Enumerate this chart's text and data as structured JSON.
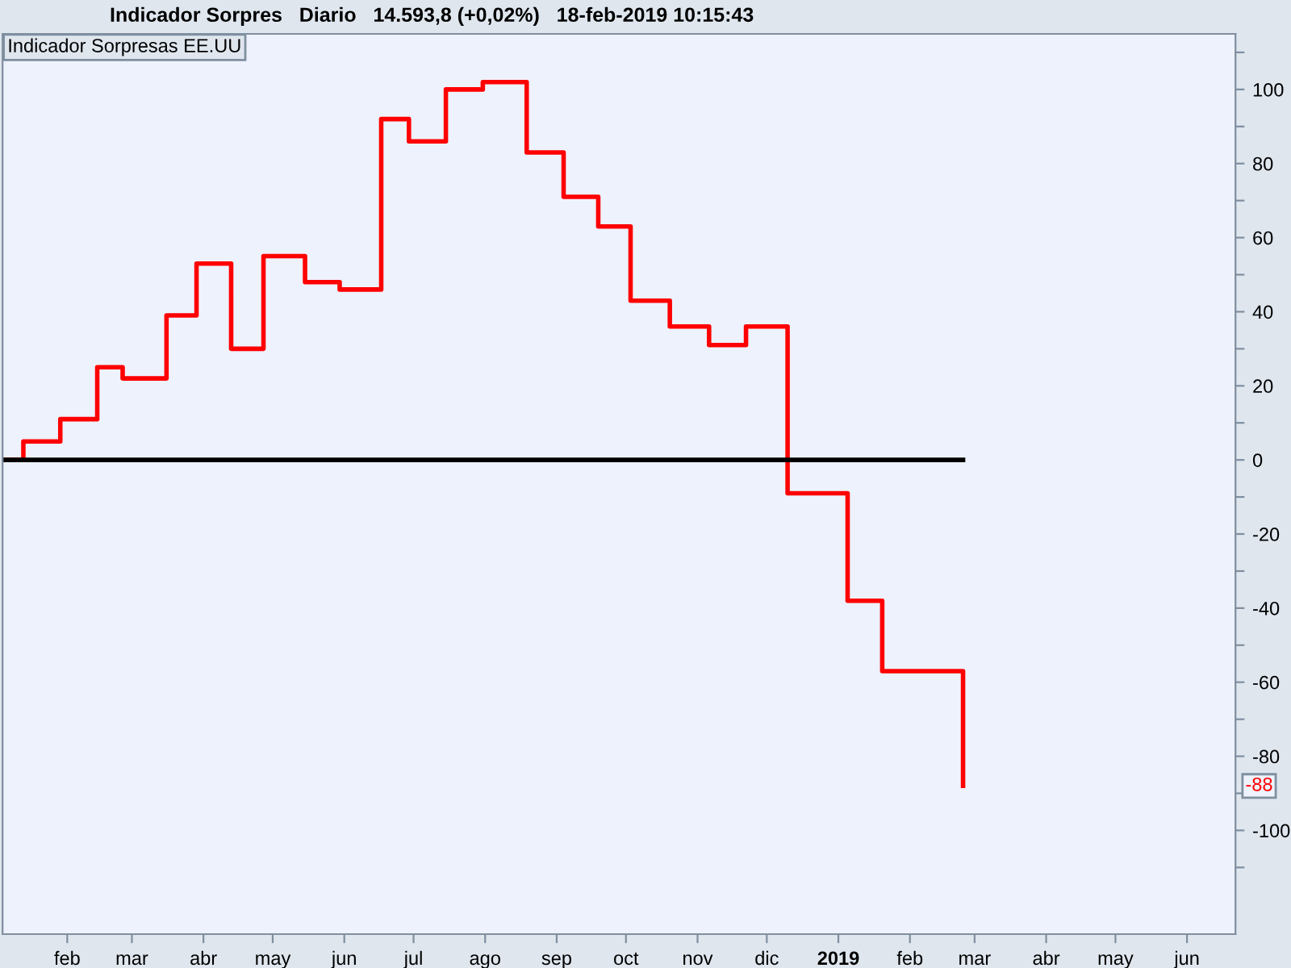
{
  "chart_data": {
    "type": "step",
    "title": "Indicador Sorpres   Diario   14.593,8 (+0,02%)   18-feb-2019 10:15:43",
    "subtitle": "Indicador Sorpresas EE.UU",
    "series": [
      {
        "color": "#ff0000",
        "x": [
          "2018-01-04",
          "2018-01-13",
          "2018-01-29",
          "2018-02-14",
          "2018-02-25",
          "2018-03-16",
          "2018-03-29",
          "2018-04-13",
          "2018-04-27",
          "2018-05-15",
          "2018-05-30",
          "2018-06-17",
          "2018-06-29",
          "2018-07-15",
          "2018-07-31",
          "2018-08-19",
          "2018-09-04",
          "2018-09-19",
          "2018-10-03",
          "2018-10-20",
          "2018-11-06",
          "2018-11-22",
          "2018-12-10",
          "2019-01-05",
          "2019-01-20",
          "2019-02-24"
        ],
        "values": [
          0,
          5,
          11,
          25,
          22,
          39,
          53,
          30,
          55,
          48,
          46,
          92,
          86,
          100,
          102,
          83,
          71,
          63,
          43,
          36,
          31,
          36,
          -9,
          -38,
          -57,
          -88
        ]
      },
      {
        "type": "line",
        "color": "#000000",
        "x": [
          "2018-01-04",
          "2019-02-24"
        ],
        "values": [
          0,
          0
        ]
      }
    ],
    "annotations": [
      "-88"
    ],
    "xlim": [
      "2018-01-04",
      "2019-06-22"
    ],
    "xticks": [
      {
        "value": "2018-02-01",
        "label": "feb"
      },
      {
        "value": "2018-03-01",
        "label": "mar"
      },
      {
        "value": "2018-04-01",
        "label": "abr"
      },
      {
        "value": "2018-05-01",
        "label": "may"
      },
      {
        "value": "2018-06-01",
        "label": "jun"
      },
      {
        "value": "2018-07-01",
        "label": "jul"
      },
      {
        "value": "2018-08-01",
        "label": "ago"
      },
      {
        "value": "2018-09-01",
        "label": "sep"
      },
      {
        "value": "2018-10-01",
        "label": "oct"
      },
      {
        "value": "2018-11-01",
        "label": "nov"
      },
      {
        "value": "2018-12-01",
        "label": "dic"
      },
      {
        "value": "2019-01-01",
        "label": "2019"
      },
      {
        "value": "2019-02-01",
        "label": "feb"
      },
      {
        "value": "2019-03-01",
        "label": "mar"
      },
      {
        "value": "2019-04-01",
        "label": "abr"
      },
      {
        "value": "2019-05-01",
        "label": "may"
      },
      {
        "value": "2019-06-01",
        "label": "jun"
      }
    ],
    "ylim": [
      -128,
      115
    ],
    "yticks": [
      {
        "value": -110,
        "label": null
      },
      -100,
      {
        "value": -90,
        "label": null
      },
      -80,
      {
        "value": -70,
        "label": null
      },
      -60,
      {
        "value": -50,
        "label": null
      },
      -40,
      {
        "value": -30,
        "label": null
      },
      -20,
      {
        "value": -10,
        "label": null
      },
      0,
      {
        "value": 10,
        "label": null
      },
      20,
      {
        "value": 30,
        "label": null
      },
      40,
      {
        "value": 50,
        "label": null
      },
      60,
      {
        "value": 70,
        "label": null
      },
      80,
      {
        "value": 90,
        "label": null
      },
      100,
      {
        "value": 110,
        "label": null
      }
    ],
    "grid": false,
    "legend": false
  }
}
